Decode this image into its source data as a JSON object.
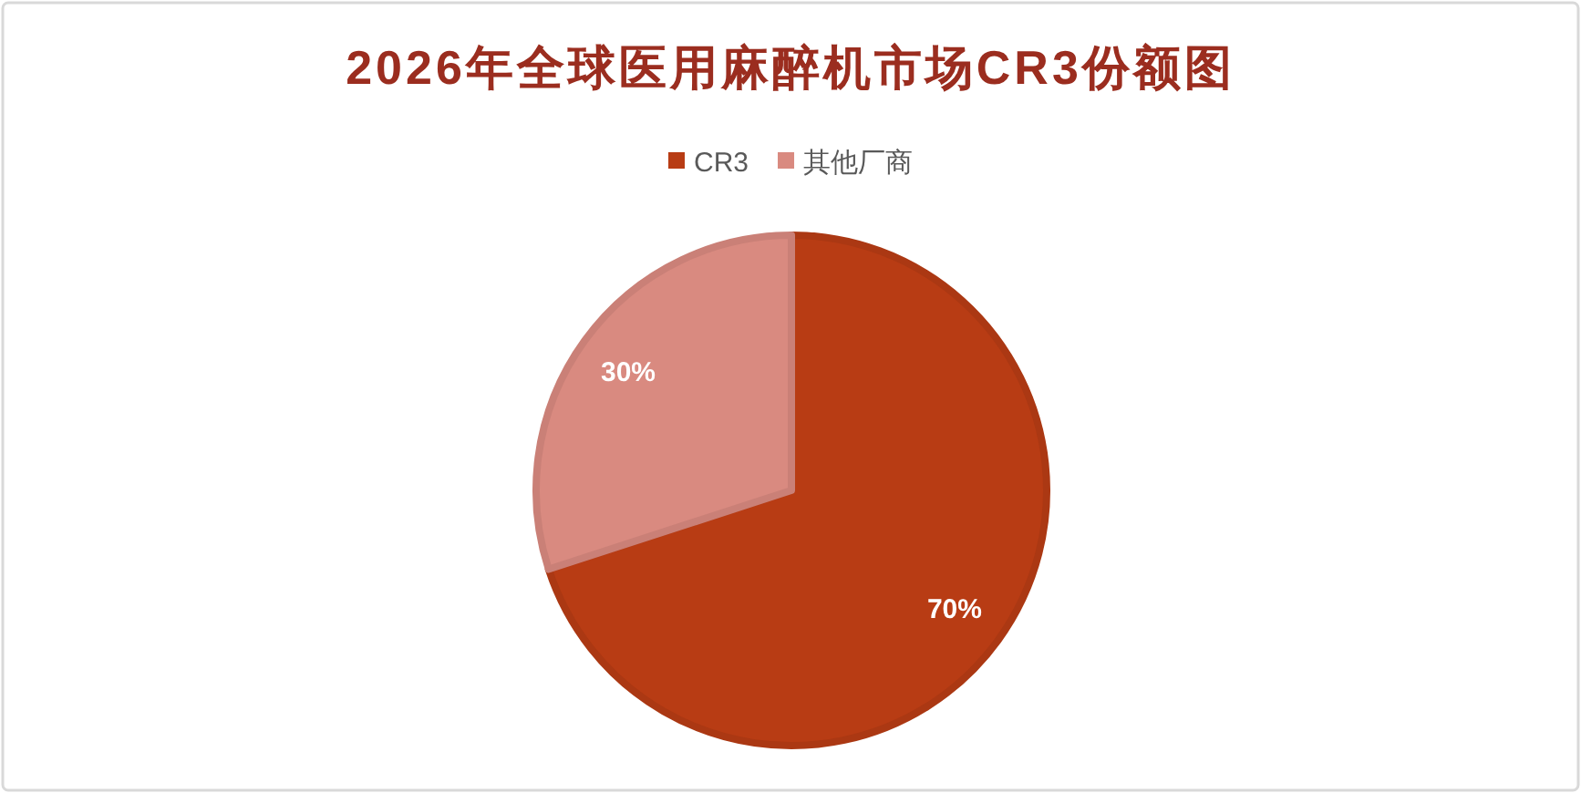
{
  "chart_data": {
    "type": "pie",
    "title": "2026年全球医用麻醉机市场CR3份额图",
    "categories": [
      "CR3",
      "其他厂商"
    ],
    "values": [
      70,
      30
    ],
    "value_labels": [
      "70%",
      "30%"
    ],
    "colors": [
      "#b83c14",
      "#d98a80"
    ],
    "legend": "top"
  }
}
